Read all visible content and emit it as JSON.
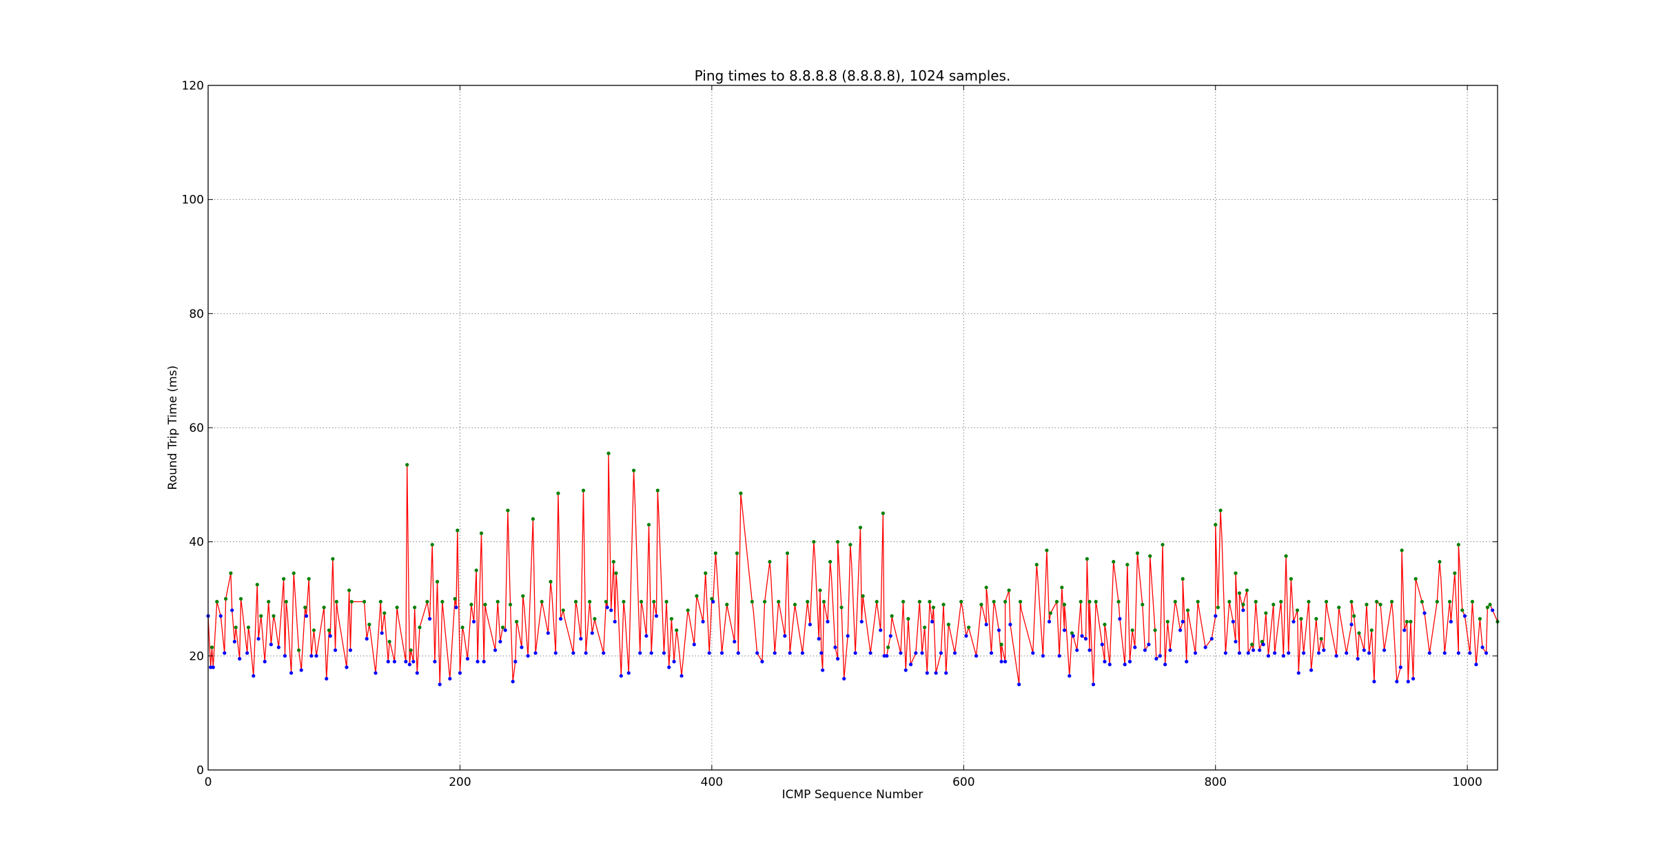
{
  "chart_data": {
    "type": "line",
    "title": "Ping times to 8.8.8.8 (8.8.8.8), 1024 samples.",
    "xlabel": "ICMP Sequence Number",
    "ylabel": "Round Trip Time (ms)",
    "xlim": [
      0,
      1024
    ],
    "ylim": [
      0,
      120
    ],
    "x_ticks": [
      0,
      200,
      400,
      600,
      800,
      1000
    ],
    "y_ticks": [
      0,
      20,
      40,
      60,
      80,
      100,
      120
    ],
    "x_tick_labels": [
      "0",
      "200",
      "400",
      "600",
      "800",
      "1000"
    ],
    "y_tick_labels": [
      "0",
      "20",
      "40",
      "60",
      "80",
      "100",
      "120"
    ],
    "grid": true,
    "series_colors": {
      "line": "#ff0000",
      "local_max_markers": "#008000",
      "local_min_markers": "#0000ff"
    },
    "peaks": [
      [
        3,
        21.5
      ],
      [
        7,
        29.5
      ],
      [
        14,
        30.0
      ],
      [
        18,
        34.5
      ],
      [
        22,
        25.0
      ],
      [
        26,
        30.0
      ],
      [
        32,
        25.0
      ],
      [
        39,
        32.5
      ],
      [
        42,
        27.0
      ],
      [
        48,
        29.5
      ],
      [
        52,
        27.0
      ],
      [
        60,
        33.5
      ],
      [
        62,
        29.5
      ],
      [
        68,
        34.5
      ],
      [
        72,
        21.0
      ],
      [
        77,
        28.5
      ],
      [
        80,
        33.5
      ],
      [
        84,
        24.5
      ],
      [
        92,
        28.5
      ],
      [
        96,
        24.5
      ],
      [
        99,
        37.0
      ],
      [
        102,
        29.5
      ],
      [
        112,
        31.5
      ],
      [
        114,
        29.5
      ],
      [
        124,
        29.5
      ],
      [
        128,
        25.5
      ],
      [
        137,
        29.5
      ],
      [
        140,
        27.5
      ],
      [
        144,
        22.5
      ],
      [
        150,
        28.5
      ],
      [
        158,
        53.5
      ],
      [
        161,
        21.0
      ],
      [
        164,
        28.5
      ],
      [
        168,
        25.0
      ],
      [
        174,
        29.5
      ],
      [
        178,
        39.5
      ],
      [
        182,
        33.0
      ],
      [
        186,
        29.5
      ],
      [
        196,
        30.0
      ],
      [
        198,
        42.0
      ],
      [
        202,
        25.0
      ],
      [
        209,
        29.0
      ],
      [
        213,
        35.0
      ],
      [
        217,
        41.5
      ],
      [
        220,
        29.0
      ],
      [
        230,
        29.5
      ],
      [
        234,
        25.0
      ],
      [
        238,
        45.5
      ],
      [
        240,
        29.0
      ],
      [
        245,
        26.0
      ],
      [
        250,
        30.5
      ],
      [
        258,
        44.0
      ],
      [
        265,
        29.5
      ],
      [
        272,
        33.0
      ],
      [
        278,
        48.5
      ],
      [
        282,
        28.0
      ],
      [
        292,
        29.5
      ],
      [
        298,
        49.0
      ],
      [
        303,
        29.5
      ],
      [
        307,
        26.5
      ],
      [
        316,
        29.5
      ],
      [
        318,
        55.5
      ],
      [
        322,
        36.5
      ],
      [
        324,
        34.5
      ],
      [
        330,
        29.5
      ],
      [
        338,
        52.5
      ],
      [
        344,
        29.5
      ],
      [
        350,
        43.0
      ],
      [
        354,
        29.5
      ],
      [
        357,
        49.0
      ],
      [
        364,
        29.5
      ],
      [
        368,
        26.5
      ],
      [
        372,
        24.5
      ],
      [
        381,
        28.0
      ],
      [
        388,
        30.5
      ],
      [
        395,
        34.5
      ],
      [
        400,
        30.0
      ],
      [
        403,
        38.0
      ],
      [
        412,
        29.0
      ],
      [
        420,
        38.0
      ],
      [
        423,
        48.5
      ],
      [
        432,
        29.5
      ],
      [
        442,
        29.5
      ],
      [
        446,
        36.5
      ],
      [
        453,
        29.5
      ],
      [
        460,
        38.0
      ],
      [
        466,
        29.0
      ],
      [
        476,
        29.5
      ],
      [
        481,
        40.0
      ],
      [
        486,
        31.5
      ],
      [
        489,
        29.5
      ],
      [
        494,
        36.5
      ],
      [
        500,
        40.0
      ],
      [
        503,
        28.5
      ],
      [
        510,
        39.5
      ],
      [
        518,
        42.5
      ],
      [
        520,
        30.5
      ],
      [
        531,
        29.5
      ],
      [
        536,
        45.0
      ],
      [
        540,
        21.5
      ],
      [
        543,
        27.0
      ],
      [
        552,
        29.5
      ],
      [
        556,
        26.5
      ],
      [
        565,
        29.5
      ],
      [
        569,
        25.0
      ],
      [
        573,
        29.5
      ],
      [
        576,
        28.5
      ],
      [
        584,
        29.0
      ],
      [
        588,
        25.5
      ],
      [
        598,
        29.5
      ],
      [
        604,
        25.0
      ],
      [
        614,
        29.0
      ],
      [
        618,
        32.0
      ],
      [
        624,
        29.5
      ],
      [
        630,
        22.0
      ],
      [
        633,
        29.5
      ],
      [
        636,
        31.5
      ],
      [
        645,
        29.5
      ],
      [
        658,
        36.0
      ],
      [
        666,
        38.5
      ],
      [
        669,
        27.5
      ],
      [
        674,
        29.5
      ],
      [
        678,
        32.0
      ],
      [
        680,
        29.0
      ],
      [
        686,
        24.0
      ],
      [
        693,
        29.5
      ],
      [
        698,
        37.0
      ],
      [
        700,
        29.5
      ],
      [
        705,
        29.5
      ],
      [
        712,
        25.5
      ],
      [
        719,
        36.5
      ],
      [
        723,
        29.5
      ],
      [
        730,
        36.0
      ],
      [
        734,
        24.5
      ],
      [
        738,
        38.0
      ],
      [
        742,
        29.0
      ],
      [
        748,
        37.5
      ],
      [
        752,
        24.5
      ],
      [
        758,
        39.5
      ],
      [
        762,
        26.0
      ],
      [
        768,
        29.5
      ],
      [
        774,
        33.5
      ],
      [
        778,
        28.0
      ],
      [
        786,
        29.5
      ],
      [
        800,
        43.0
      ],
      [
        802,
        28.5
      ],
      [
        804,
        45.5
      ],
      [
        811,
        29.5
      ],
      [
        816,
        34.5
      ],
      [
        819,
        31.0
      ],
      [
        822,
        29.0
      ],
      [
        825,
        31.5
      ],
      [
        829,
        22.0
      ],
      [
        832,
        29.5
      ],
      [
        837,
        22.5
      ],
      [
        840,
        27.5
      ],
      [
        846,
        29.0
      ],
      [
        852,
        29.5
      ],
      [
        856,
        37.5
      ],
      [
        860,
        33.5
      ],
      [
        865,
        28.0
      ],
      [
        868,
        26.5
      ],
      [
        874,
        29.5
      ],
      [
        880,
        26.5
      ],
      [
        884,
        23.0
      ],
      [
        888,
        29.5
      ],
      [
        898,
        28.5
      ],
      [
        908,
        29.5
      ],
      [
        910,
        27.0
      ],
      [
        914,
        24.0
      ],
      [
        920,
        29.0
      ],
      [
        924,
        24.5
      ],
      [
        928,
        29.5
      ],
      [
        931,
        29.0
      ],
      [
        940,
        29.5
      ],
      [
        948,
        38.5
      ],
      [
        952,
        26.0
      ],
      [
        955,
        26.0
      ],
      [
        959,
        33.5
      ],
      [
        964,
        29.5
      ],
      [
        976,
        29.5
      ],
      [
        978,
        36.5
      ],
      [
        986,
        29.5
      ],
      [
        990,
        34.5
      ],
      [
        993,
        39.5
      ],
      [
        996,
        28.0
      ],
      [
        1004,
        29.5
      ],
      [
        1010,
        26.5
      ],
      [
        1016,
        28.5
      ],
      [
        1018,
        29.0
      ],
      [
        1024,
        26.0
      ]
    ],
    "troughs": [
      [
        0,
        27.0
      ],
      [
        2,
        18.0
      ],
      [
        4,
        18.0
      ],
      [
        10,
        27.0
      ],
      [
        13,
        20.5
      ],
      [
        19,
        28.0
      ],
      [
        21,
        22.5
      ],
      [
        25,
        19.5
      ],
      [
        31,
        20.5
      ],
      [
        36,
        16.5
      ],
      [
        40,
        23.0
      ],
      [
        45,
        19.0
      ],
      [
        50,
        22.0
      ],
      [
        56,
        21.5
      ],
      [
        61,
        20.0
      ],
      [
        66,
        17.0
      ],
      [
        74,
        17.5
      ],
      [
        78,
        27.0
      ],
      [
        82,
        20.0
      ],
      [
        86,
        20.0
      ],
      [
        94,
        16.0
      ],
      [
        97,
        23.5
      ],
      [
        101,
        21.0
      ],
      [
        110,
        18.0
      ],
      [
        113,
        21.0
      ],
      [
        126,
        23.0
      ],
      [
        133,
        17.0
      ],
      [
        138,
        24.0
      ],
      [
        143,
        19.0
      ],
      [
        148,
        19.0
      ],
      [
        157,
        19.0
      ],
      [
        160,
        18.5
      ],
      [
        163,
        19.0
      ],
      [
        166,
        17.0
      ],
      [
        176,
        26.5
      ],
      [
        180,
        19.0
      ],
      [
        184,
        15.0
      ],
      [
        192,
        16.0
      ],
      [
        197,
        28.5
      ],
      [
        200,
        17.0
      ],
      [
        206,
        19.5
      ],
      [
        211,
        26.0
      ],
      [
        214,
        19.0
      ],
      [
        219,
        19.0
      ],
      [
        228,
        21.0
      ],
      [
        232,
        22.5
      ],
      [
        236,
        24.5
      ],
      [
        242,
        15.5
      ],
      [
        244,
        19.0
      ],
      [
        249,
        21.5
      ],
      [
        254,
        20.0
      ],
      [
        260,
        20.5
      ],
      [
        270,
        24.0
      ],
      [
        276,
        20.5
      ],
      [
        280,
        26.5
      ],
      [
        290,
        20.5
      ],
      [
        296,
        23.0
      ],
      [
        300,
        20.5
      ],
      [
        305,
        24.0
      ],
      [
        314,
        20.5
      ],
      [
        317,
        28.5
      ],
      [
        320,
        28.0
      ],
      [
        323,
        26.0
      ],
      [
        328,
        16.5
      ],
      [
        334,
        17.0
      ],
      [
        343,
        20.5
      ],
      [
        348,
        23.5
      ],
      [
        352,
        20.5
      ],
      [
        356,
        27.0
      ],
      [
        362,
        20.5
      ],
      [
        366,
        18.0
      ],
      [
        370,
        19.0
      ],
      [
        376,
        16.5
      ],
      [
        386,
        22.0
      ],
      [
        393,
        26.0
      ],
      [
        398,
        20.5
      ],
      [
        401,
        29.5
      ],
      [
        408,
        20.5
      ],
      [
        418,
        22.5
      ],
      [
        421,
        20.5
      ],
      [
        436,
        20.5
      ],
      [
        440,
        19.0
      ],
      [
        450,
        20.5
      ],
      [
        458,
        23.5
      ],
      [
        462,
        20.5
      ],
      [
        472,
        20.5
      ],
      [
        478,
        25.5
      ],
      [
        485,
        23.0
      ],
      [
        487,
        20.5
      ],
      [
        488,
        17.5
      ],
      [
        492,
        26.0
      ],
      [
        498,
        21.5
      ],
      [
        500,
        19.5
      ],
      [
        505,
        16.0
      ],
      [
        508,
        23.5
      ],
      [
        514,
        20.5
      ],
      [
        519,
        26.0
      ],
      [
        526,
        20.5
      ],
      [
        534,
        24.5
      ],
      [
        537,
        20.0
      ],
      [
        539,
        20.0
      ],
      [
        542,
        23.5
      ],
      [
        550,
        20.5
      ],
      [
        554,
        17.5
      ],
      [
        558,
        18.5
      ],
      [
        562,
        20.5
      ],
      [
        567,
        20.5
      ],
      [
        571,
        17.0
      ],
      [
        575,
        26.0
      ],
      [
        578,
        17.0
      ],
      [
        582,
        20.5
      ],
      [
        586,
        17.0
      ],
      [
        593,
        20.5
      ],
      [
        602,
        23.5
      ],
      [
        610,
        20.0
      ],
      [
        618,
        25.5
      ],
      [
        622,
        20.5
      ],
      [
        628,
        24.5
      ],
      [
        630,
        19.0
      ],
      [
        633,
        19.0
      ],
      [
        637,
        25.5
      ],
      [
        644,
        15.0
      ],
      [
        655,
        20.5
      ],
      [
        663,
        20.0
      ],
      [
        668,
        26.0
      ],
      [
        676,
        20.0
      ],
      [
        680,
        24.5
      ],
      [
        684,
        16.5
      ],
      [
        687,
        23.5
      ],
      [
        690,
        21.0
      ],
      [
        694,
        23.5
      ],
      [
        697,
        23.0
      ],
      [
        700,
        21.0
      ],
      [
        703,
        15.0
      ],
      [
        710,
        22.0
      ],
      [
        712,
        19.0
      ],
      [
        716,
        18.5
      ],
      [
        724,
        26.5
      ],
      [
        728,
        18.5
      ],
      [
        732,
        19.0
      ],
      [
        736,
        21.5
      ],
      [
        744,
        21.0
      ],
      [
        747,
        22.0
      ],
      [
        753,
        19.5
      ],
      [
        756,
        20.0
      ],
      [
        760,
        18.5
      ],
      [
        764,
        21.0
      ],
      [
        772,
        24.5
      ],
      [
        774,
        26.0
      ],
      [
        777,
        19.0
      ],
      [
        784,
        20.5
      ],
      [
        792,
        21.5
      ],
      [
        797,
        23.0
      ],
      [
        800,
        27.0
      ],
      [
        808,
        20.5
      ],
      [
        814,
        26.0
      ],
      [
        816,
        22.5
      ],
      [
        819,
        20.5
      ],
      [
        822,
        28.0
      ],
      [
        826,
        20.5
      ],
      [
        830,
        21.0
      ],
      [
        835,
        21.0
      ],
      [
        838,
        22.0
      ],
      [
        842,
        20.0
      ],
      [
        847,
        20.5
      ],
      [
        854,
        20.0
      ],
      [
        858,
        20.5
      ],
      [
        862,
        26.0
      ],
      [
        866,
        17.0
      ],
      [
        870,
        20.5
      ],
      [
        876,
        17.5
      ],
      [
        882,
        20.5
      ],
      [
        886,
        21.0
      ],
      [
        896,
        20.0
      ],
      [
        904,
        20.5
      ],
      [
        908,
        25.5
      ],
      [
        913,
        19.5
      ],
      [
        918,
        21.0
      ],
      [
        922,
        20.5
      ],
      [
        926,
        15.5
      ],
      [
        934,
        21.0
      ],
      [
        944,
        15.5
      ],
      [
        947,
        18.0
      ],
      [
        950,
        24.5
      ],
      [
        953,
        15.5
      ],
      [
        957,
        16.0
      ],
      [
        966,
        27.5
      ],
      [
        970,
        20.5
      ],
      [
        982,
        20.5
      ],
      [
        987,
        26.0
      ],
      [
        993,
        20.5
      ],
      [
        998,
        27.0
      ],
      [
        1002,
        20.5
      ],
      [
        1007,
        18.5
      ],
      [
        1012,
        21.5
      ],
      [
        1015,
        20.5
      ],
      [
        1020,
        28.0
      ]
    ]
  }
}
